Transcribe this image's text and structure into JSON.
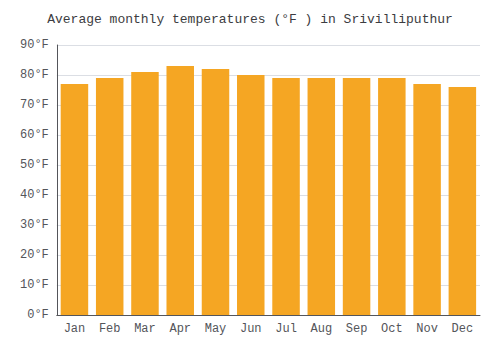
{
  "chart_data": {
    "type": "bar",
    "title": "Average monthly temperatures (°F ) in Srivilliputhur",
    "categories": [
      "Jan",
      "Feb",
      "Mar",
      "Apr",
      "May",
      "Jun",
      "Jul",
      "Aug",
      "Sep",
      "Oct",
      "Nov",
      "Dec"
    ],
    "values": [
      77,
      79,
      81,
      83,
      82,
      80,
      79,
      79,
      79,
      79,
      77,
      76
    ],
    "color": "#F5A623",
    "ylim": [
      0,
      90
    ],
    "yticks": [
      {
        "value": 0,
        "label": "0°F"
      },
      {
        "value": 10,
        "label": "10°F"
      },
      {
        "value": 20,
        "label": "20°F"
      },
      {
        "value": 30,
        "label": "30°F"
      },
      {
        "value": 40,
        "label": "40°F"
      },
      {
        "value": 50,
        "label": "50°F"
      },
      {
        "value": 60,
        "label": "60°F"
      },
      {
        "value": 70,
        "label": "70°F"
      },
      {
        "value": 80,
        "label": "80°F"
      },
      {
        "value": 90,
        "label": "90°F"
      }
    ],
    "grid": true
  }
}
